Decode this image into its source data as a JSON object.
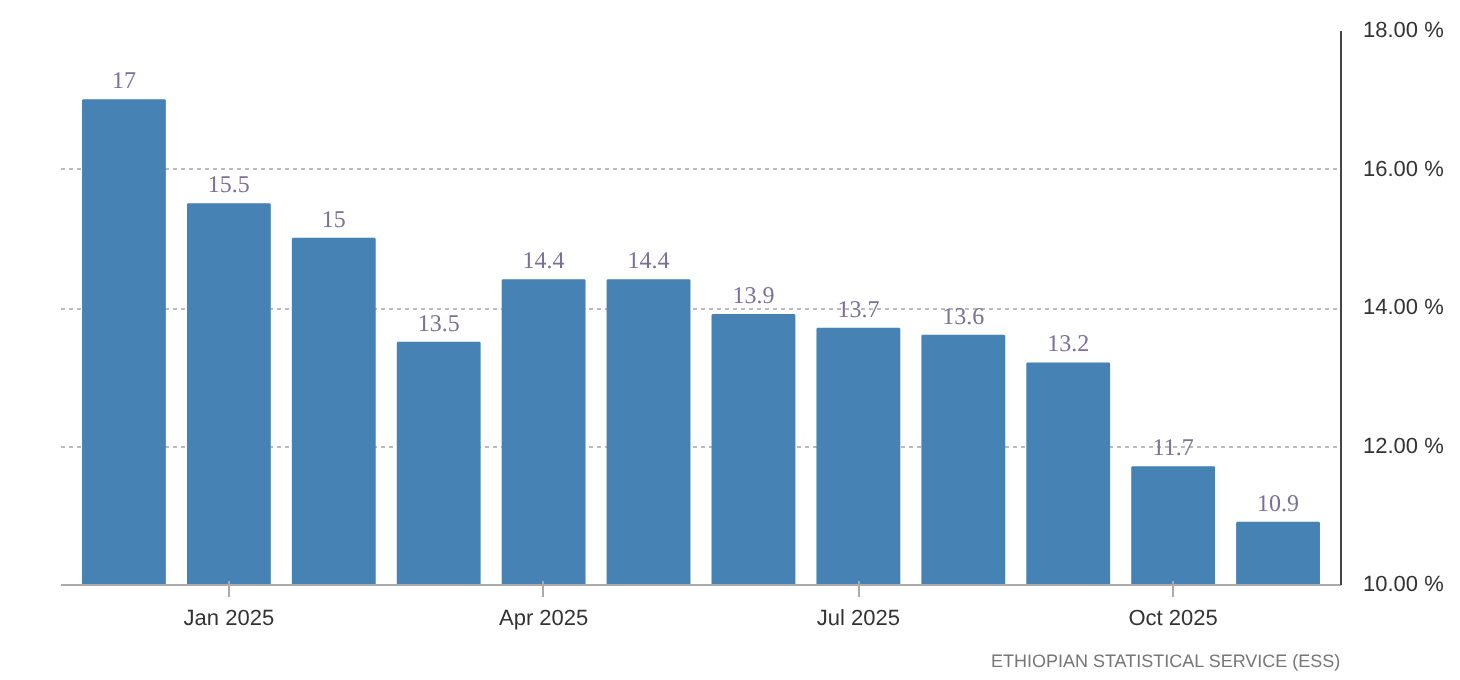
{
  "chart_data": {
    "type": "bar",
    "categories": [
      null,
      "Jan 2025",
      null,
      null,
      "Apr 2025",
      null,
      null,
      "Jul 2025",
      null,
      null,
      "Oct 2025",
      null
    ],
    "values": [
      17,
      15.5,
      15,
      13.5,
      14.4,
      14.4,
      13.9,
      13.7,
      13.6,
      13.2,
      11.7,
      10.9
    ],
    "color": "#4682b4",
    "ylim": [
      10,
      18
    ],
    "yticks": [
      {
        "value": 10,
        "label": "10.00 %"
      },
      {
        "value": 12,
        "label": "12.00 %"
      },
      {
        "value": 14,
        "label": "14.00 %"
      },
      {
        "value": 16,
        "label": "16.00 %"
      },
      {
        "value": 18,
        "label": "18.00 %"
      }
    ],
    "grid": "y",
    "data_labels": true,
    "annotations": [
      "ETHIOPIAN STATISTICAL SERVICE (ESS)"
    ]
  }
}
